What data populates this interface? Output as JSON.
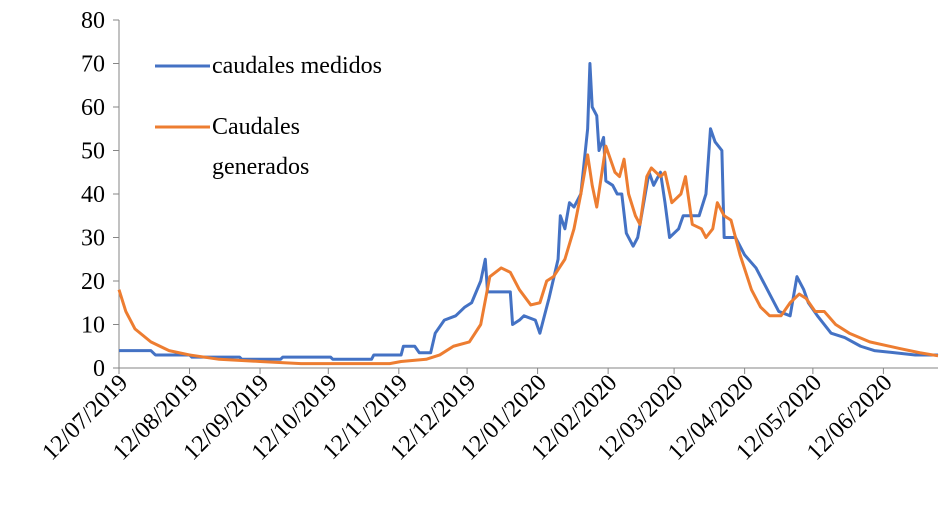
{
  "chart_data": {
    "type": "line",
    "xlim": [
      "2019-07-12",
      "2020-07-06"
    ],
    "xticks": [
      {
        "value": "2019-07-12",
        "label": "12/07/2019"
      },
      {
        "value": "2019-08-12",
        "label": "12/08/2019"
      },
      {
        "value": "2019-09-12",
        "label": "12/09/2019"
      },
      {
        "value": "2019-10-12",
        "label": "12/10/2019"
      },
      {
        "value": "2019-11-12",
        "label": "12/11/2019"
      },
      {
        "value": "2019-12-12",
        "label": "12/12/2019"
      },
      {
        "value": "2020-01-12",
        "label": "12/01/2020"
      },
      {
        "value": "2020-02-12",
        "label": "12/02/2020"
      },
      {
        "value": "2020-03-12",
        "label": "12/03/2020"
      },
      {
        "value": "2020-04-12",
        "label": "12/04/2020"
      },
      {
        "value": "2020-05-12",
        "label": "12/05/2020"
      },
      {
        "value": "2020-06-12",
        "label": "12/06/2020"
      }
    ],
    "ylim": [
      0,
      80
    ],
    "yticks": [
      0,
      10,
      20,
      30,
      40,
      50,
      60,
      70,
      80
    ],
    "legend": "upper left",
    "series": [
      {
        "name": "caudales medidos",
        "color": "#4472c4",
        "x": [
          "2019-07-12",
          "2019-07-26",
          "2019-07-28",
          "2019-08-12",
          "2019-08-13",
          "2019-09-03",
          "2019-09-04",
          "2019-09-21",
          "2019-09-22",
          "2019-10-13",
          "2019-10-14",
          "2019-10-31",
          "2019-11-01",
          "2019-11-13",
          "2019-11-14",
          "2019-11-19",
          "2019-11-21",
          "2019-11-26",
          "2019-11-28",
          "2019-12-02",
          "2019-12-07",
          "2019-12-11",
          "2019-12-14",
          "2019-12-18",
          "2019-12-20",
          "2019-12-21",
          "2019-12-31",
          "2020-01-01",
          "2020-01-04",
          "2020-01-06",
          "2020-01-11",
          "2020-01-13",
          "2020-01-15",
          "2020-01-17",
          "2020-01-21",
          "2020-01-22",
          "2020-01-24",
          "2020-01-26",
          "2020-01-28",
          "2020-01-31",
          "2020-02-02",
          "2020-02-03",
          "2020-02-04",
          "2020-02-05",
          "2020-02-07",
          "2020-02-08",
          "2020-02-10",
          "2020-02-11",
          "2020-02-14",
          "2020-02-16",
          "2020-02-18",
          "2020-02-20",
          "2020-02-23",
          "2020-02-25",
          "2020-02-27",
          "2020-03-01",
          "2020-03-03",
          "2020-03-05",
          "2020-03-06",
          "2020-03-08",
          "2020-03-10",
          "2020-03-14",
          "2020-03-16",
          "2020-03-23",
          "2020-03-26",
          "2020-03-28",
          "2020-03-30",
          "2020-04-02",
          "2020-04-03",
          "2020-04-08",
          "2020-04-12",
          "2020-04-17",
          "2020-04-20",
          "2020-04-23",
          "2020-04-27",
          "2020-05-02",
          "2020-05-05",
          "2020-05-08",
          "2020-05-10",
          "2020-05-14",
          "2020-05-20",
          "2020-05-26",
          "2020-06-02",
          "2020-06-08",
          "2020-06-17",
          "2020-06-26",
          "2020-07-06"
        ],
        "values": [
          4,
          4,
          3,
          3,
          2.5,
          2.5,
          2,
          2,
          2.5,
          2.5,
          2,
          2,
          3,
          3,
          5,
          5,
          3.5,
          3.5,
          8,
          11,
          12,
          14,
          15,
          20,
          25,
          17.5,
          17.5,
          10,
          11,
          12,
          11,
          8,
          12,
          16,
          25,
          35,
          32,
          38,
          37,
          40,
          50,
          55,
          70,
          60,
          58,
          50,
          53,
          43,
          42,
          40,
          40,
          31,
          28,
          30,
          36,
          45,
          42,
          44,
          45,
          38,
          30,
          32,
          35,
          35,
          40,
          55,
          52,
          50,
          30,
          30,
          26,
          23,
          20,
          17,
          13,
          12,
          21,
          18,
          15,
          12,
          8,
          7,
          5,
          4,
          3.5,
          3,
          3
        ]
      },
      {
        "name": "Caudales generados",
        "color": "#ed7d31",
        "x": [
          "2019-07-12",
          "2019-07-15",
          "2019-07-19",
          "2019-07-26",
          "2019-08-03",
          "2019-08-12",
          "2019-08-25",
          "2019-09-12",
          "2019-09-30",
          "2019-10-22",
          "2019-11-08",
          "2019-11-13",
          "2019-11-24",
          "2019-11-30",
          "2019-12-06",
          "2019-12-13",
          "2019-12-18",
          "2019-12-22",
          "2019-12-27",
          "2019-12-31",
          "2020-01-04",
          "2020-01-09",
          "2020-01-13",
          "2020-01-16",
          "2020-01-19",
          "2020-01-24",
          "2020-01-28",
          "2020-01-31",
          "2020-02-03",
          "2020-02-05",
          "2020-02-07",
          "2020-02-09",
          "2020-02-11",
          "2020-02-15",
          "2020-02-17",
          "2020-02-19",
          "2020-02-21",
          "2020-02-24",
          "2020-02-26",
          "2020-02-29",
          "2020-03-02",
          "2020-03-06",
          "2020-03-08",
          "2020-03-11",
          "2020-03-15",
          "2020-03-17",
          "2020-03-20",
          "2020-03-24",
          "2020-03-26",
          "2020-03-29",
          "2020-03-31",
          "2020-04-03",
          "2020-04-06",
          "2020-04-10",
          "2020-04-15",
          "2020-04-19",
          "2020-04-23",
          "2020-04-28",
          "2020-05-02",
          "2020-05-06",
          "2020-05-09",
          "2020-05-13",
          "2020-05-17",
          "2020-05-22",
          "2020-05-28",
          "2020-06-06",
          "2020-06-19",
          "2020-06-28",
          "2020-07-06"
        ],
        "values": [
          18,
          13,
          9,
          6,
          4,
          3,
          2,
          1.5,
          1,
          1,
          1,
          1.5,
          2,
          3,
          5,
          6,
          10,
          21,
          23,
          22,
          18,
          14.5,
          15,
          20,
          21,
          25,
          32,
          40,
          49,
          42,
          37,
          44,
          51,
          45,
          44,
          48,
          40,
          35,
          33,
          44,
          46,
          44,
          45,
          38,
          40,
          44,
          33,
          32,
          30,
          32,
          38,
          35,
          34,
          26,
          18,
          14,
          12,
          12,
          15,
          17,
          16,
          13,
          13,
          10,
          8,
          6,
          4.5,
          3.5,
          2.8
        ]
      }
    ]
  }
}
